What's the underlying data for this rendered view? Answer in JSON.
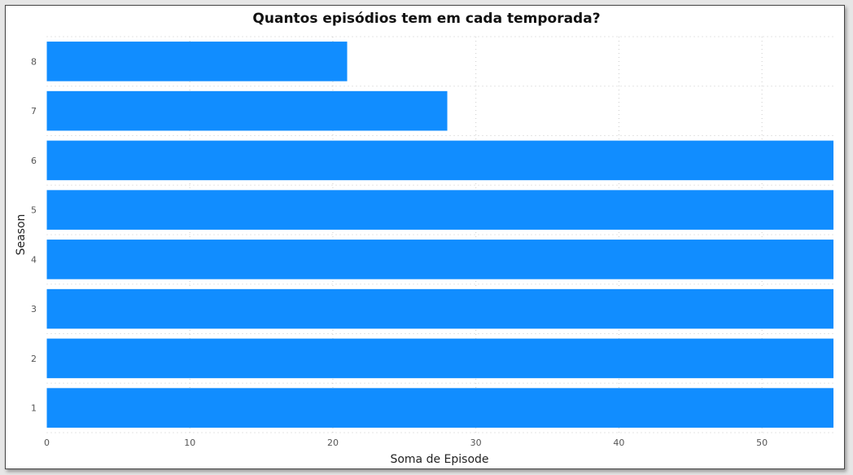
{
  "chart_data": {
    "type": "bar",
    "orientation": "horizontal",
    "title": "Quantos episódios tem em cada temporada?",
    "xlabel": "Soma de Episode",
    "ylabel": "Season",
    "categories": [
      "1",
      "2",
      "3",
      "4",
      "5",
      "6",
      "7",
      "8"
    ],
    "values": [
      55,
      55,
      55,
      55,
      55,
      55,
      28,
      21
    ],
    "x_ticks": [
      0,
      10,
      20,
      30,
      40,
      50
    ],
    "xlim": [
      0,
      55
    ],
    "grid": true,
    "colors": {
      "bar": "#118DFF",
      "grid": "#cccccc"
    }
  }
}
